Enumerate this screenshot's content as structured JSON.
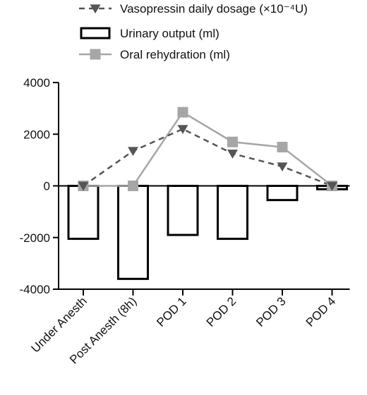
{
  "chart_data": {
    "type": "bar",
    "categories": [
      "Under Anesth",
      "Post Anesth (8h)",
      "POD 1",
      "POD 2",
      "POD 3",
      "POD 4"
    ],
    "ylim": [
      -4000,
      4000
    ],
    "yticks": [
      -4000,
      -2000,
      0,
      2000,
      4000
    ],
    "ytick_labels": [
      "-4000",
      "-2000",
      "0",
      "2000",
      "4000"
    ],
    "grid": false,
    "legend_position": "top",
    "series": [
      {
        "name": "Vasopressin daily dosage (×10⁻⁴U)",
        "kind": "line",
        "style": "dashed",
        "marker": "triangle-down",
        "color": "#555555",
        "values": [
          0,
          1350,
          2200,
          1250,
          750,
          0
        ]
      },
      {
        "name": "Urinary output (ml)",
        "kind": "bar",
        "color": "#000000",
        "fill": "#ffffff",
        "values": [
          -2050,
          -3600,
          -1900,
          -2050,
          -550,
          -130
        ]
      },
      {
        "name": "Oral rehydration (ml)",
        "kind": "line",
        "style": "solid",
        "marker": "square",
        "color": "#a6a6a6",
        "values": [
          0,
          0,
          2850,
          1700,
          1500,
          0
        ]
      }
    ]
  }
}
